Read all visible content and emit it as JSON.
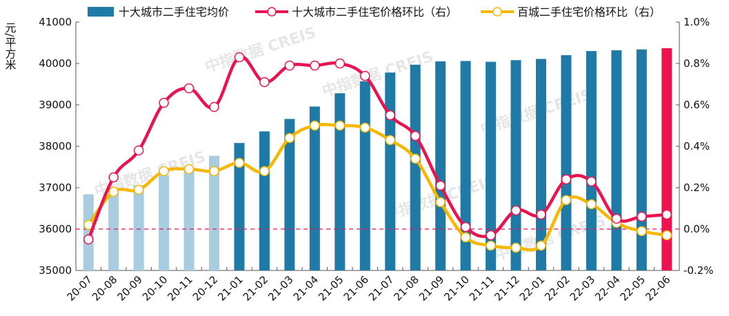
{
  "chart_data": {
    "type": "bar+line",
    "ylabel": "元/平方米",
    "ylim": [
      35000,
      41000
    ],
    "y_ticks": [
      "35000",
      "36000",
      "37000",
      "38000",
      "39000",
      "40000",
      "41000"
    ],
    "y2lim": [
      -0.2,
      1.0
    ],
    "y2_ticks": [
      "-0.2%",
      "0.0%",
      "0.2%",
      "0.4%",
      "0.6%",
      "0.8%",
      "1.0%"
    ],
    "categories": [
      "20-07",
      "20-08",
      "20-09",
      "20-10",
      "20-11",
      "20-12",
      "21-01",
      "21-02",
      "21-03",
      "21-04",
      "21-05",
      "21-06",
      "21-07",
      "21-08",
      "21-09",
      "21-10",
      "21-11",
      "21-12",
      "22-01",
      "22-02",
      "22-03",
      "22-04",
      "22-05",
      "22-06"
    ],
    "series": [
      {
        "name": "十大城市二手住宅均价",
        "type": "bar",
        "axis": "left",
        "values": [
          36840,
          36950,
          37060,
          37300,
          37420,
          37770,
          38080,
          38360,
          38660,
          38960,
          39280,
          39570,
          39780,
          39970,
          40050,
          40060,
          40040,
          40080,
          40110,
          40200,
          40300,
          40320,
          40340,
          40370
        ]
      },
      {
        "name": "十大城市二手住宅价格环比（右）",
        "type": "line",
        "axis": "right",
        "values": [
          -0.05,
          0.25,
          0.38,
          0.61,
          0.68,
          0.59,
          0.83,
          0.71,
          0.79,
          0.79,
          0.8,
          0.74,
          0.55,
          0.45,
          0.21,
          0.01,
          -0.03,
          0.09,
          0.07,
          0.24,
          0.23,
          0.05,
          0.06,
          0.07
        ]
      },
      {
        "name": "百城二手住宅价格环比（右）",
        "type": "line",
        "axis": "right",
        "values": [
          0.02,
          0.18,
          0.19,
          0.28,
          0.29,
          0.28,
          0.32,
          0.28,
          0.44,
          0.5,
          0.5,
          0.49,
          0.43,
          0.34,
          0.13,
          -0.04,
          -0.08,
          -0.09,
          -0.08,
          0.14,
          0.12,
          0.03,
          -0.01,
          -0.03
        ]
      }
    ],
    "reference_line": 0.0,
    "legend_position": "top",
    "colors": {
      "bar_early": "#a8cde0",
      "bar": "#1f7ba6",
      "bar_last": "#f0124f",
      "line1": "#e8134f",
      "line2": "#f5b700",
      "zero_line": "#e8134f"
    }
  },
  "watermark": "中指数据 CREIS"
}
